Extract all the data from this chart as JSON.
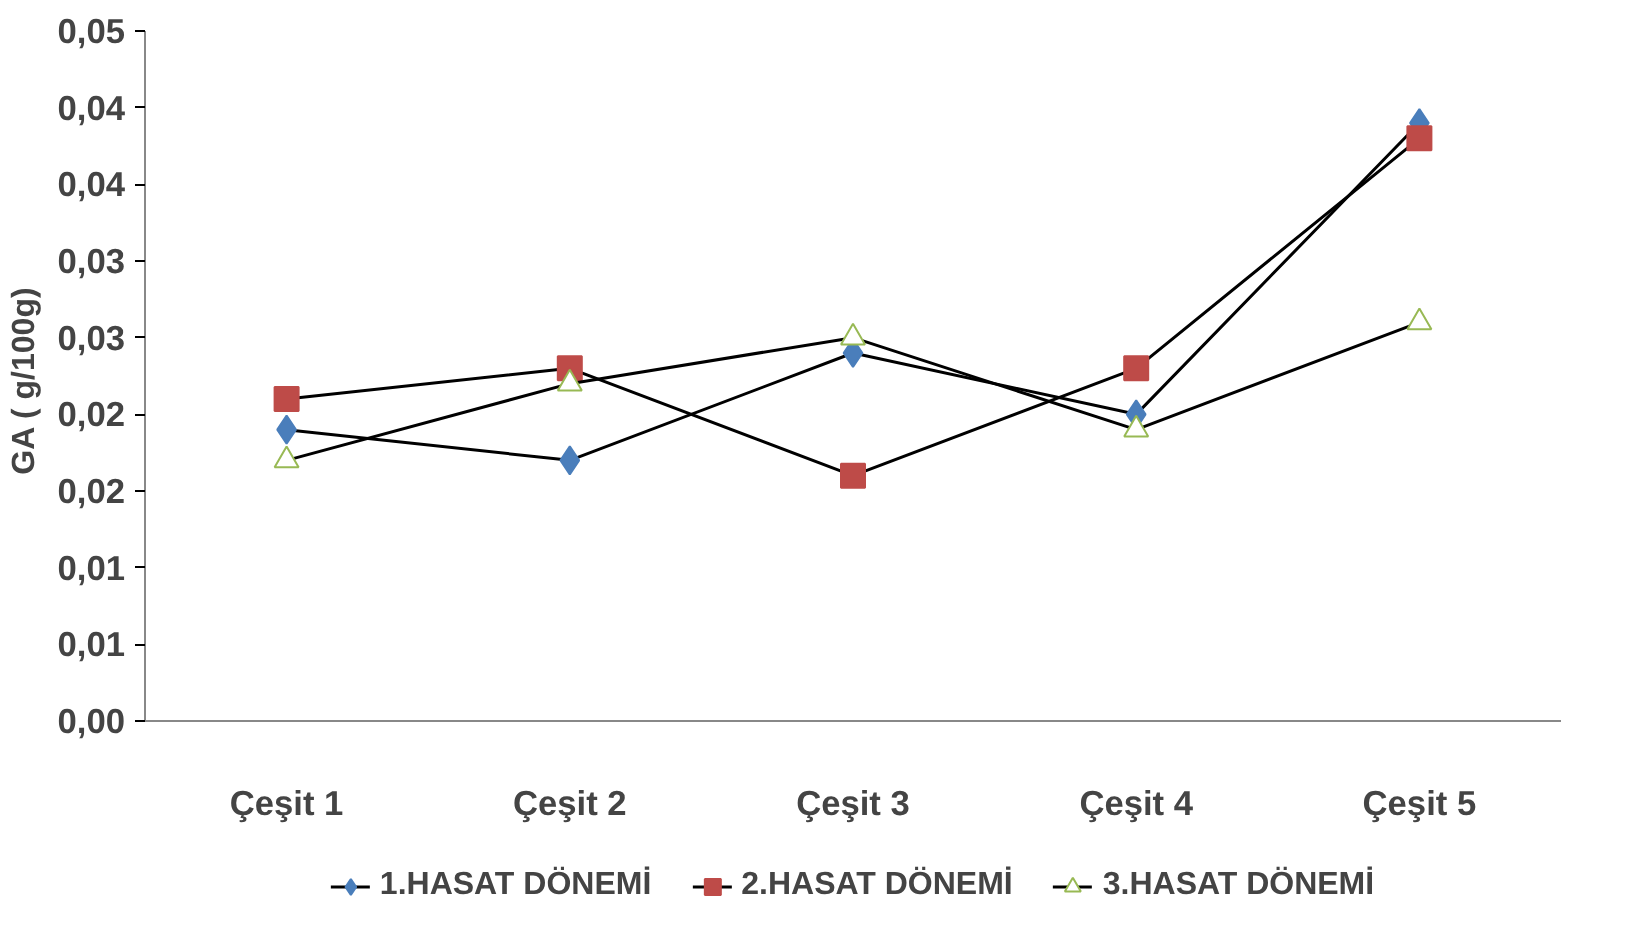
{
  "chart_data": {
    "type": "line",
    "ylabel": "GA  ( g/100g)",
    "categories": [
      "Çeşit 1",
      "Çeşit 2",
      "Çeşit 3",
      "Çeşit 4",
      "Çeşit 5"
    ],
    "ylim": [
      0,
      0.045
    ],
    "yticks": [
      {
        "value": 0,
        "label": "0,00"
      },
      {
        "value": 0.005,
        "label": "0,01"
      },
      {
        "value": 0.01,
        "label": "0,01"
      },
      {
        "value": 0.015,
        "label": "0,02"
      },
      {
        "value": 0.02,
        "label": "0,02"
      },
      {
        "value": 0.025,
        "label": "0,03"
      },
      {
        "value": 0.03,
        "label": "0,03"
      },
      {
        "value": 0.035,
        "label": "0,04"
      },
      {
        "value": 0.04,
        "label": "0,04"
      },
      {
        "value": 0.045,
        "label": "0,05"
      }
    ],
    "grid": false,
    "legend": "bottom",
    "series": [
      {
        "name": "1.HASAT DÖNEMİ",
        "color": "#4a7ebb",
        "marker": "diamond",
        "values": [
          0.019,
          0.017,
          0.024,
          0.02,
          0.039
        ]
      },
      {
        "name": "2.HASAT DÖNEMİ",
        "color": "#be4b48",
        "marker": "square",
        "values": [
          0.021,
          0.023,
          0.016,
          0.023,
          0.038
        ]
      },
      {
        "name": "3.HASAT DÖNEMİ",
        "color": "#98b954",
        "marker": "triangle",
        "values": [
          0.017,
          0.022,
          0.025,
          0.019,
          0.026
        ]
      }
    ]
  }
}
